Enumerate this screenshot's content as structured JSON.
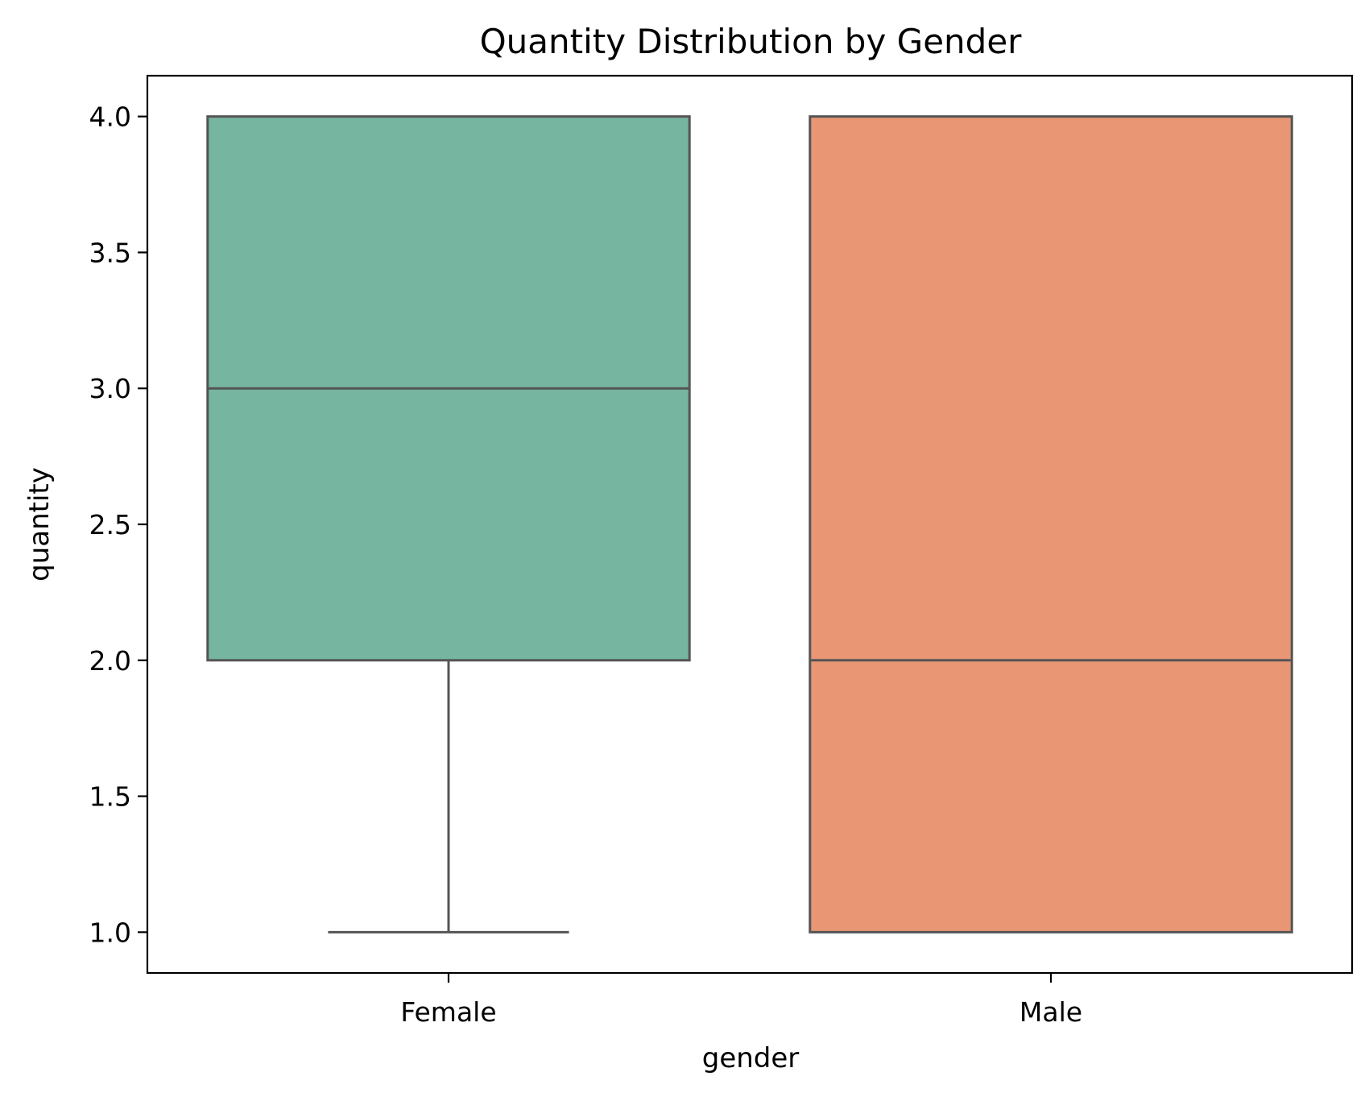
{
  "chart_data": {
    "type": "box",
    "title": "Quantity Distribution by Gender",
    "xlabel": "gender",
    "ylabel": "quantity",
    "categories": [
      "Female",
      "Male"
    ],
    "ylim": [
      0.85,
      4.15
    ],
    "yticks": [
      "1.0",
      "1.5",
      "2.0",
      "2.5",
      "3.0",
      "3.5",
      "4.0"
    ],
    "grid": false,
    "boxes": [
      {
        "category": "Female",
        "whisker_low": 1.0,
        "q1": 2.0,
        "median": 3.0,
        "q3": 4.0,
        "whisker_high": 4.0,
        "color": "#76b5a0"
      },
      {
        "category": "Male",
        "whisker_low": 1.0,
        "q1": 1.0,
        "median": 2.0,
        "q3": 4.0,
        "whisker_high": 4.0,
        "color": "#e99675"
      }
    ],
    "line_color": "#555555"
  }
}
